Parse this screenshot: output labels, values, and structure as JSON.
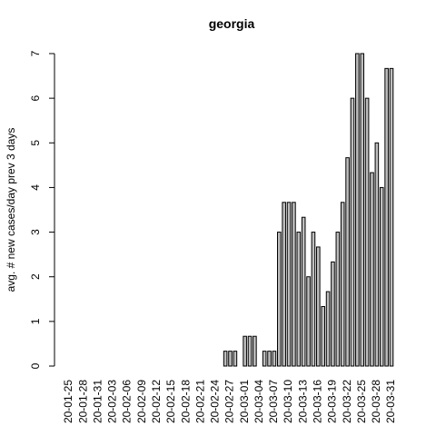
{
  "chart_data": {
    "type": "bar",
    "title": "georgia",
    "y_label": "avg. # new cases/day prev  3  days",
    "categories": [
      "20-01-25",
      null,
      null,
      "20-01-28",
      null,
      null,
      "20-01-31",
      null,
      null,
      "20-02-03",
      null,
      null,
      "20-02-06",
      null,
      null,
      "20-02-09",
      null,
      null,
      "20-02-12",
      null,
      null,
      "20-02-15",
      null,
      null,
      "20-02-18",
      null,
      null,
      "20-02-21",
      null,
      null,
      "20-02-24",
      null,
      null,
      "20-02-27",
      null,
      null,
      "20-03-01",
      null,
      null,
      "20-03-04",
      null,
      null,
      "20-03-07",
      null,
      null,
      "20-03-10",
      null,
      null,
      "20-03-13",
      null,
      null,
      "20-03-16",
      null,
      null,
      "20-03-19",
      null,
      null,
      "20-03-22",
      null,
      null,
      "20-03-25",
      null,
      null,
      "20-03-28",
      null,
      null,
      "20-03-31"
    ],
    "values": [
      0,
      0,
      0,
      0,
      0,
      0,
      0,
      0,
      0,
      0,
      0,
      0,
      0,
      0,
      0,
      0,
      0,
      0,
      0,
      0,
      0,
      0,
      0,
      0,
      0,
      0,
      0,
      0,
      0,
      0,
      0,
      0,
      0.333,
      0.333,
      0.333,
      0,
      0.667,
      0.667,
      0.667,
      0,
      0.333,
      0.333,
      0.333,
      3,
      3.667,
      3.667,
      3.667,
      3,
      3.333,
      2,
      3,
      2.667,
      1.333,
      1.667,
      2.333,
      3,
      3.667,
      4.667,
      6,
      7,
      7,
      6,
      4.333,
      5,
      4,
      6.667,
      6.667
    ],
    "color": "#bebebe",
    "ylim": [
      0,
      7
    ],
    "yticks": [
      0,
      1,
      2,
      3,
      4,
      5,
      6,
      7
    ]
  }
}
